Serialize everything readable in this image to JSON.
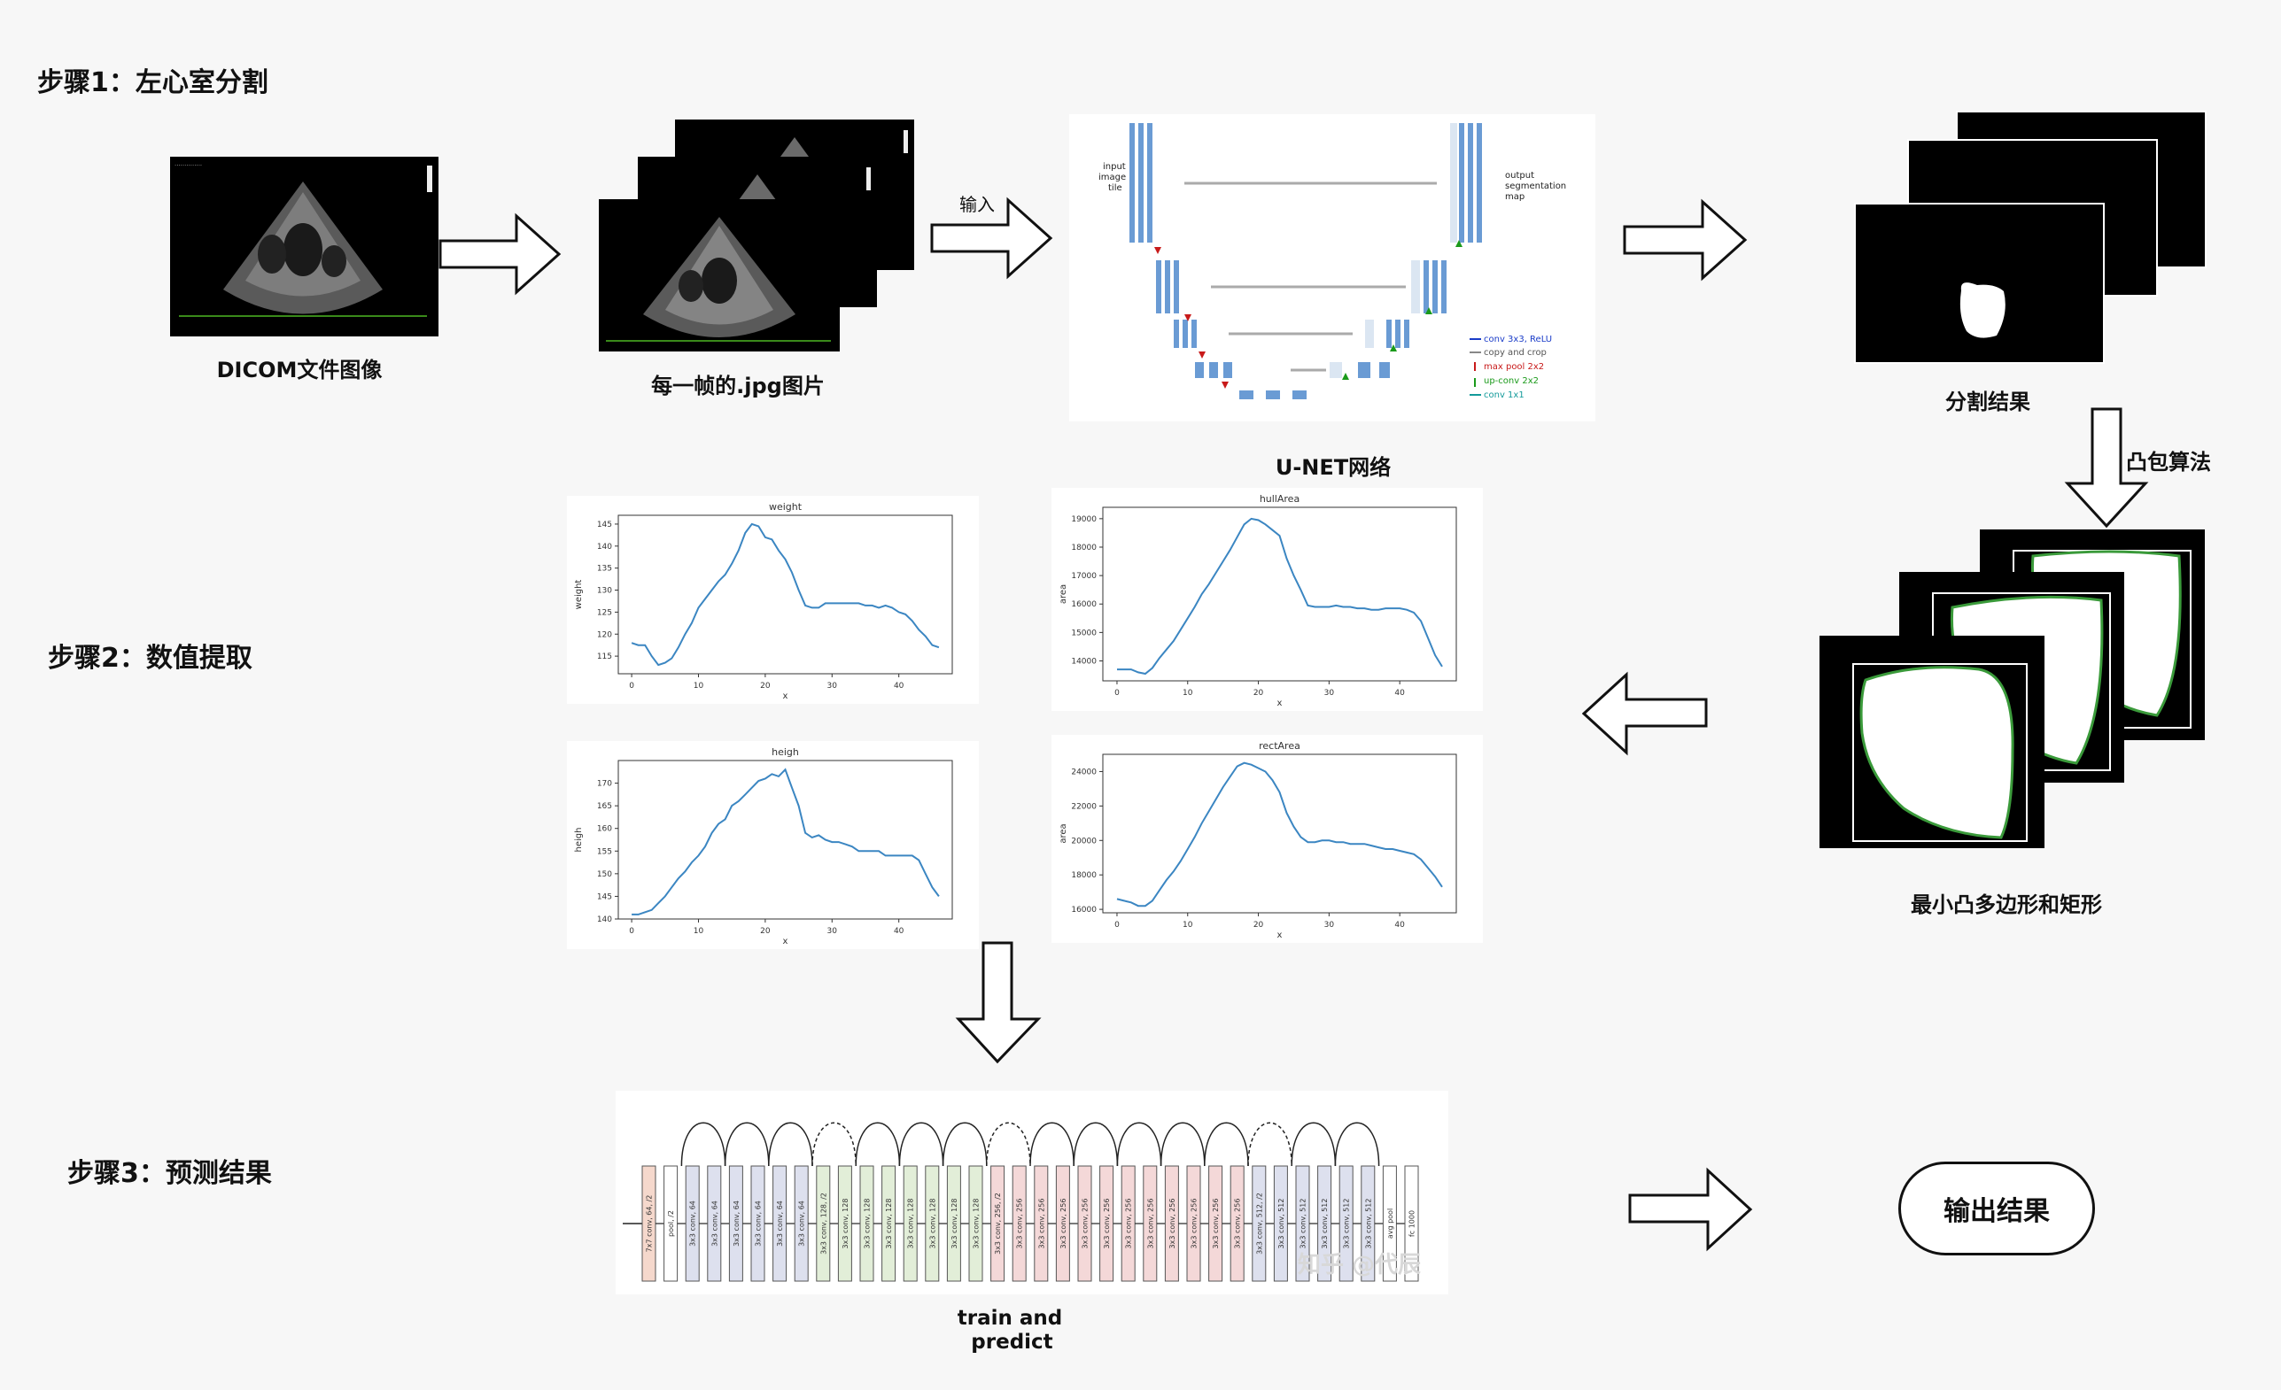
{
  "steps": {
    "step1": "步骤1：左心室分割",
    "step2": "步骤2：数值提取",
    "step3": "步骤3：预测结果"
  },
  "captions": {
    "dicom": "DICOM文件图像",
    "frames": "每一帧的.jpg图片",
    "input": "输入",
    "unet": "U-NET网络",
    "seg": "分割结果",
    "hull_algo": "凸包算法",
    "min_poly": "最小凸多边形和矩形",
    "train_predict_line1": "train and",
    "train_predict_line2": "predict",
    "output": "输出结果"
  },
  "unet": {
    "input_label": [
      "input",
      "image",
      "tile"
    ],
    "output_label": [
      "output",
      "segmentation",
      "map"
    ],
    "legend": [
      {
        "text": "conv 3x3, ReLU",
        "color": "#1a3cc8"
      },
      {
        "text": "copy and crop",
        "color": "#888888"
      },
      {
        "text": "max pool 2x2",
        "color": "#c81a1a"
      },
      {
        "text": "up-conv 2x2",
        "color": "#1a9a1a"
      },
      {
        "text": "conv 1x1",
        "color": "#139a9a"
      }
    ]
  },
  "resnet": {
    "watermark": "知乎 @代辰",
    "layers": [
      "7x7 conv, 64, /2",
      "pool, /2",
      "3x3 conv, 64",
      "3x3 conv, 64",
      "3x3 conv, 64",
      "3x3 conv, 64",
      "3x3 conv, 64",
      "3x3 conv, 64",
      "3x3 conv, 128, /2",
      "3x3 conv, 128",
      "3x3 conv, 128",
      "3x3 conv, 128",
      "3x3 conv, 128",
      "3x3 conv, 128",
      "3x3 conv, 128",
      "3x3 conv, 128",
      "3x3 conv, 256, /2",
      "3x3 conv, 256",
      "3x3 conv, 256",
      "3x3 conv, 256",
      "3x3 conv, 256",
      "3x3 conv, 256",
      "3x3 conv, 256",
      "3x3 conv, 256",
      "3x3 conv, 256",
      "3x3 conv, 256",
      "3x3 conv, 256",
      "3x3 conv, 256",
      "3x3 conv, 512, /2",
      "3x3 conv, 512",
      "3x3 conv, 512",
      "3x3 conv, 512",
      "3x3 conv, 512",
      "3x3 conv, 512",
      "avg pool",
      "fc 1000"
    ],
    "layer_colors": {
      "first": "#f5d8cc",
      "pool": "#ffffff",
      "c64": "#dde0ee",
      "c128": "#e2eed8",
      "c256": "#f4d8d8",
      "c512": "#dde0ee",
      "end": "#ffffff"
    }
  },
  "chart_data": [
    {
      "type": "line",
      "title": "weight",
      "xlabel": "x",
      "ylabel": "weight",
      "xlim": [
        -2,
        48
      ],
      "ylim": [
        111,
        147
      ],
      "xticks": [
        0,
        10,
        20,
        30,
        40
      ],
      "yticks": [
        115,
        120,
        125,
        130,
        135,
        140,
        145
      ],
      "x": [
        0,
        1,
        2,
        3,
        4,
        5,
        6,
        7,
        8,
        9,
        10,
        11,
        12,
        13,
        14,
        15,
        16,
        17,
        18,
        19,
        20,
        21,
        22,
        23,
        24,
        25,
        26,
        27,
        28,
        29,
        30,
        31,
        32,
        33,
        34,
        35,
        36,
        37,
        38,
        39,
        40,
        41,
        42,
        43,
        44,
        45,
        46
      ],
      "values": [
        118,
        117.5,
        117.5,
        115,
        113,
        113.5,
        114.5,
        117,
        120,
        122.5,
        126,
        128,
        130,
        132,
        133.5,
        136,
        139,
        143,
        145,
        144.5,
        142,
        141.5,
        139,
        137,
        134,
        130,
        126.5,
        126,
        126,
        127,
        127,
        127,
        127,
        127,
        127,
        126.5,
        126.5,
        126,
        126.5,
        126,
        125,
        124.5,
        123,
        121,
        119.5,
        117.5,
        117
      ]
    },
    {
      "type": "line",
      "title": "hullArea",
      "xlabel": "x",
      "ylabel": "area",
      "xlim": [
        -2,
        48
      ],
      "ylim": [
        13300,
        19400
      ],
      "xticks": [
        0,
        10,
        20,
        30,
        40
      ],
      "yticks": [
        14000,
        15000,
        16000,
        17000,
        18000,
        19000
      ],
      "x": [
        0,
        1,
        2,
        3,
        4,
        5,
        6,
        7,
        8,
        9,
        10,
        11,
        12,
        13,
        14,
        15,
        16,
        17,
        18,
        19,
        20,
        21,
        22,
        23,
        24,
        25,
        26,
        27,
        28,
        29,
        30,
        31,
        32,
        33,
        34,
        35,
        36,
        37,
        38,
        39,
        40,
        41,
        42,
        43,
        44,
        45,
        46
      ],
      "values": [
        13700,
        13700,
        13700,
        13600,
        13550,
        13750,
        14100,
        14400,
        14700,
        15100,
        15500,
        15900,
        16350,
        16700,
        17100,
        17500,
        17900,
        18350,
        18800,
        19000,
        18950,
        18800,
        18600,
        18400,
        17600,
        17000,
        16500,
        15950,
        15900,
        15900,
        15900,
        15950,
        15900,
        15900,
        15850,
        15850,
        15800,
        15800,
        15850,
        15850,
        15850,
        15800,
        15700,
        15400,
        14800,
        14200,
        13800
      ]
    },
    {
      "type": "line",
      "title": "heigh",
      "xlabel": "x",
      "ylabel": "heigh",
      "xlim": [
        -2,
        48
      ],
      "ylim": [
        140,
        175
      ],
      "xticks": [
        0,
        10,
        20,
        30,
        40
      ],
      "yticks": [
        140,
        145,
        150,
        155,
        160,
        165,
        170
      ],
      "x": [
        0,
        1,
        2,
        3,
        4,
        5,
        6,
        7,
        8,
        9,
        10,
        11,
        12,
        13,
        14,
        15,
        16,
        17,
        18,
        19,
        20,
        21,
        22,
        23,
        24,
        25,
        26,
        27,
        28,
        29,
        30,
        31,
        32,
        33,
        34,
        35,
        36,
        37,
        38,
        39,
        40,
        41,
        42,
        43,
        44,
        45,
        46
      ],
      "values": [
        141,
        141,
        141.5,
        142,
        143.5,
        145,
        147,
        149,
        150.5,
        152.5,
        154,
        156,
        159,
        161,
        162,
        165,
        166,
        167.5,
        169,
        170.5,
        171,
        172,
        171.5,
        173,
        169,
        165,
        159,
        158,
        158.5,
        157.5,
        157,
        157,
        156.5,
        156,
        155,
        155,
        155,
        155,
        154,
        154,
        154,
        154,
        154,
        153,
        150,
        147,
        145
      ]
    },
    {
      "type": "line",
      "title": "rectArea",
      "xlabel": "x",
      "ylabel": "area",
      "xlim": [
        -2,
        48
      ],
      "ylim": [
        15800,
        25000
      ],
      "xticks": [
        0,
        10,
        20,
        30,
        40
      ],
      "yticks": [
        16000,
        18000,
        20000,
        22000,
        24000
      ],
      "x": [
        0,
        1,
        2,
        3,
        4,
        5,
        6,
        7,
        8,
        9,
        10,
        11,
        12,
        13,
        14,
        15,
        16,
        17,
        18,
        19,
        20,
        21,
        22,
        23,
        24,
        25,
        26,
        27,
        28,
        29,
        30,
        31,
        32,
        33,
        34,
        35,
        36,
        37,
        38,
        39,
        40,
        41,
        42,
        43,
        44,
        45,
        46
      ],
      "values": [
        16600,
        16500,
        16400,
        16200,
        16200,
        16500,
        17100,
        17700,
        18200,
        18800,
        19500,
        20200,
        21000,
        21700,
        22400,
        23100,
        23700,
        24300,
        24500,
        24400,
        24200,
        24000,
        23500,
        22800,
        21600,
        20800,
        20200,
        19900,
        19900,
        20000,
        20000,
        19900,
        19900,
        19800,
        19800,
        19800,
        19700,
        19600,
        19500,
        19500,
        19400,
        19300,
        19200,
        18900,
        18400,
        17900,
        17300
      ]
    }
  ]
}
